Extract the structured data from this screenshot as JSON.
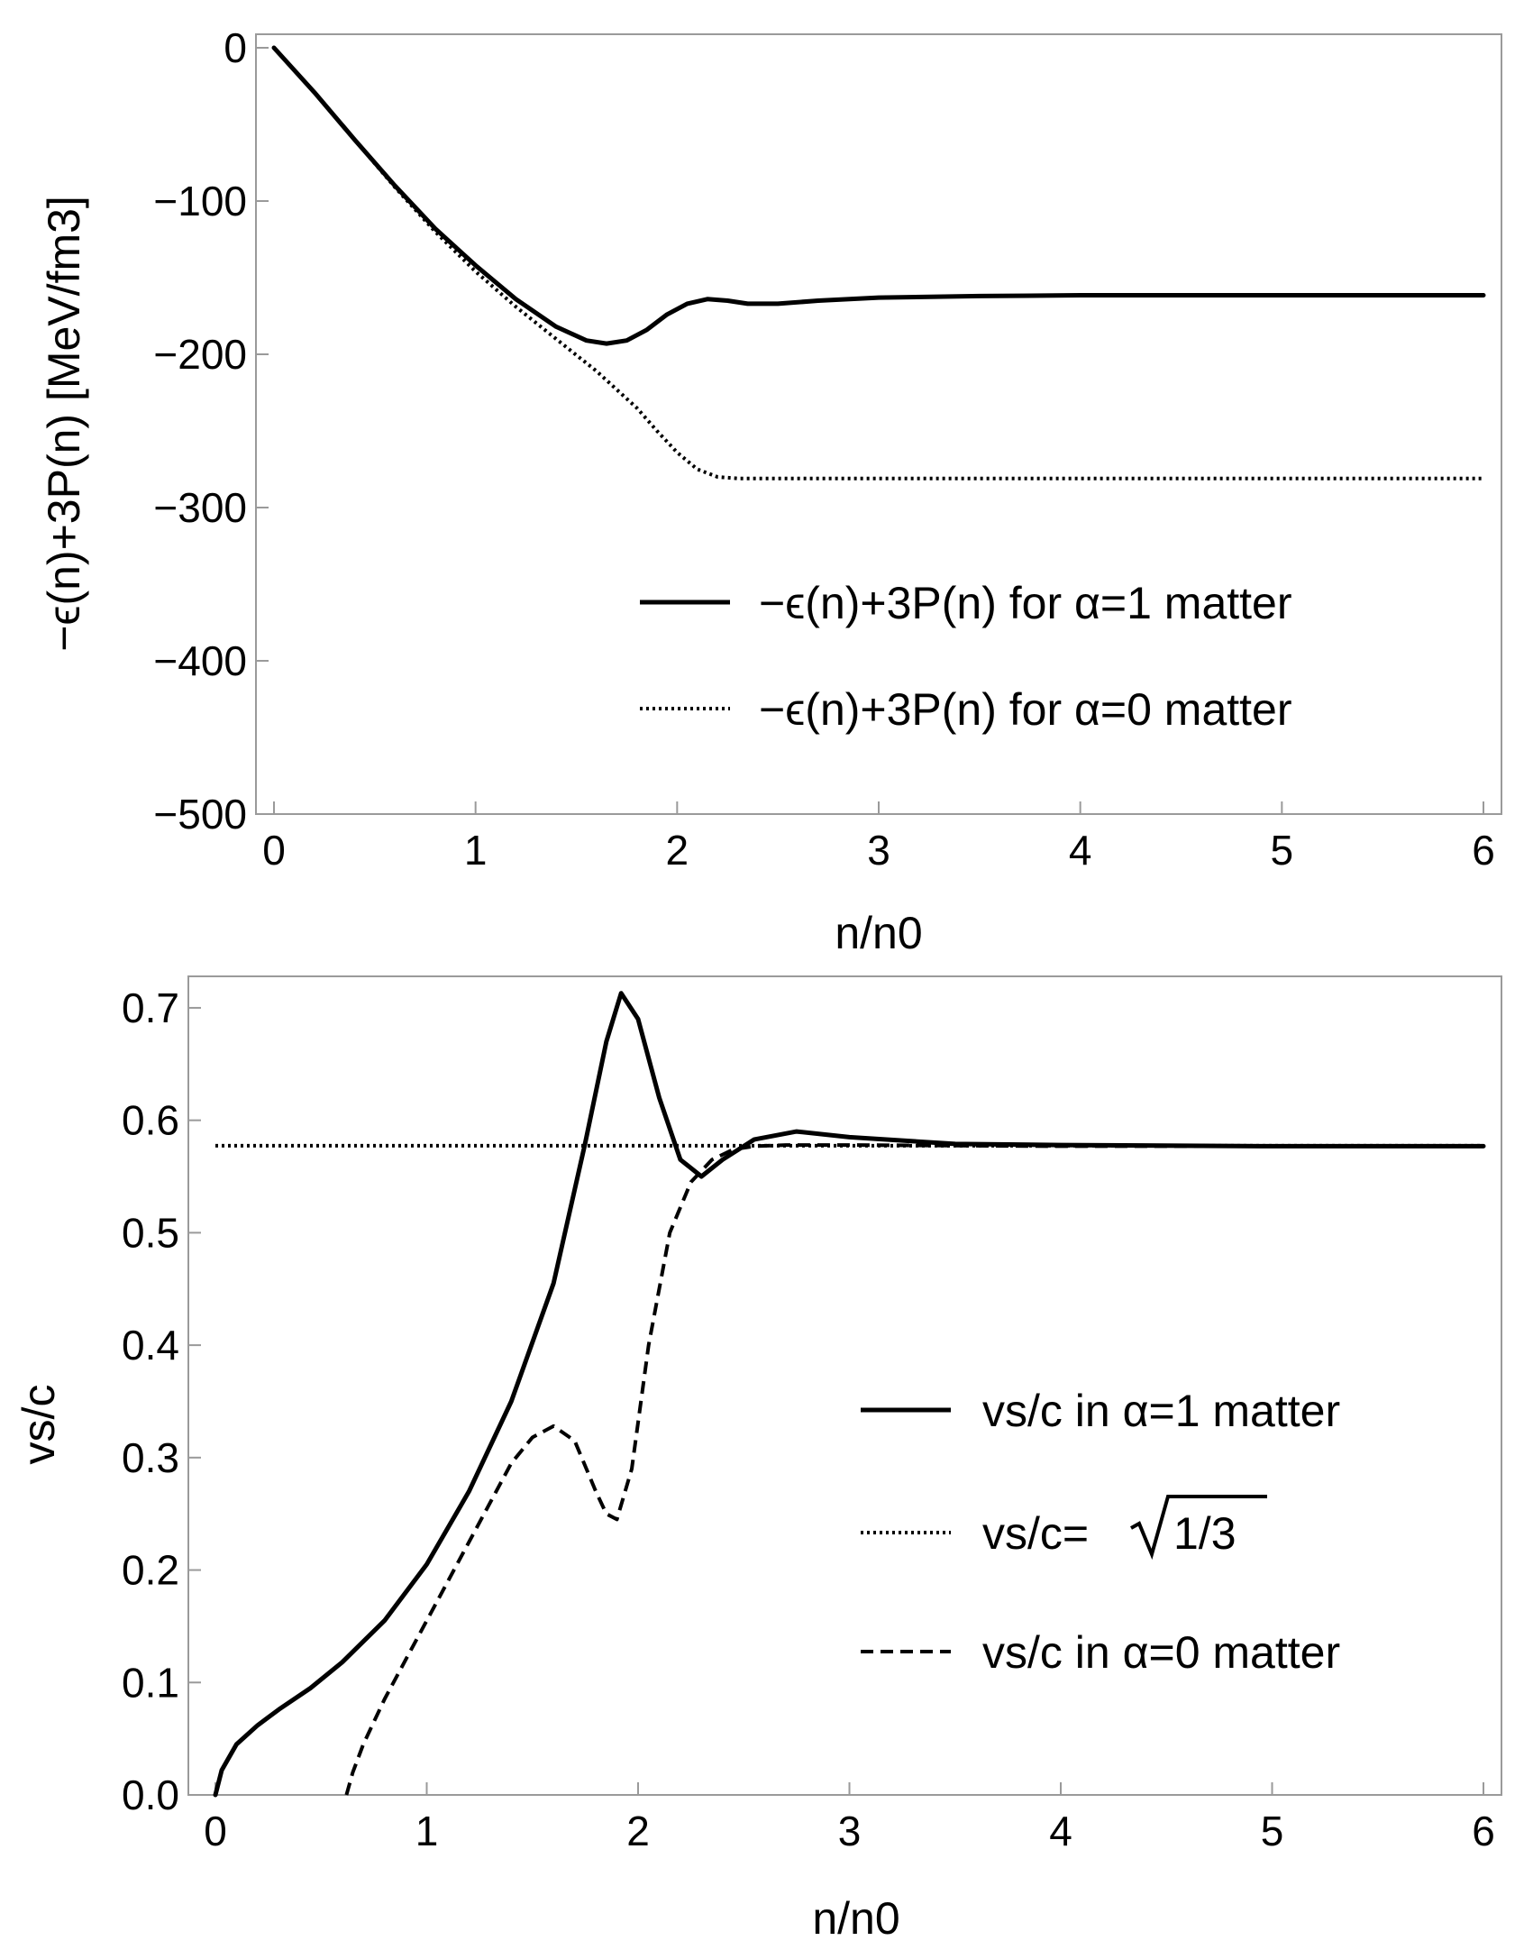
{
  "chart_data": [
    {
      "type": "line",
      "xlabel": "n/n0",
      "ylabel": "−ϵ(n)+3P(n) [MeV/fm3]",
      "xlim": [
        0,
        6
      ],
      "ylim": [
        -500,
        0
      ],
      "xticks": [
        0,
        1,
        2,
        3,
        4,
        5,
        6
      ],
      "yticks": [
        0,
        -100,
        -200,
        -300,
        -400,
        -500
      ],
      "xtick_labels": [
        "0",
        "1",
        "2",
        "3",
        "4",
        "5",
        "6"
      ],
      "ytick_labels": [
        "0",
        "−100",
        "−200",
        "−300",
        "−400",
        "−500"
      ],
      "legend_position": "lower-right",
      "series": [
        {
          "name": "−ϵ(n)+3P(n) for α=1 matter",
          "style": "solid",
          "x": [
            0,
            0.2,
            0.4,
            0.6,
            0.8,
            1.0,
            1.2,
            1.4,
            1.55,
            1.65,
            1.75,
            1.85,
            1.95,
            2.05,
            2.15,
            2.25,
            2.35,
            2.5,
            2.7,
            3.0,
            3.5,
            4.0,
            5.0,
            6.0
          ],
          "y": [
            0,
            -29,
            -60,
            -90,
            -118,
            -142,
            -164,
            -182,
            -191,
            -193,
            -191,
            -184,
            -174,
            -167,
            -164,
            -165,
            -167,
            -167,
            -165,
            -163,
            -162,
            -161.5,
            -161.5,
            -161.5
          ]
        },
        {
          "name": "−ϵ(n)+3P(n) for α=0 matter",
          "style": "dotted",
          "x": [
            0,
            0.2,
            0.4,
            0.6,
            0.8,
            1.0,
            1.2,
            1.4,
            1.6,
            1.8,
            1.9,
            2.0,
            2.1,
            2.2,
            2.3,
            2.5,
            3.0,
            4.0,
            5.0,
            6.0
          ],
          "y": [
            0,
            -29,
            -60,
            -91,
            -120,
            -146,
            -169,
            -190,
            -211,
            -235,
            -250,
            -264,
            -275,
            -280,
            -281,
            -281,
            -281,
            -281,
            -281,
            -281
          ]
        }
      ]
    },
    {
      "type": "line",
      "xlabel": "n/n0",
      "ylabel": "vs/c",
      "xlim": [
        0,
        6
      ],
      "ylim": [
        0,
        0.72
      ],
      "xticks": [
        0,
        1,
        2,
        3,
        4,
        5,
        6
      ],
      "yticks": [
        0.0,
        0.1,
        0.2,
        0.3,
        0.4,
        0.5,
        0.6,
        0.7
      ],
      "xtick_labels": [
        "0",
        "1",
        "2",
        "3",
        "4",
        "5",
        "6"
      ],
      "ytick_labels": [
        "0.0",
        "0.1",
        "0.2",
        "0.3",
        "0.4",
        "0.5",
        "0.6",
        "0.7"
      ],
      "legend_position": "right",
      "series": [
        {
          "name": "vs/c in α=1 matter",
          "style": "solid",
          "x": [
            0,
            0.03,
            0.1,
            0.2,
            0.3,
            0.45,
            0.6,
            0.8,
            1.0,
            1.2,
            1.4,
            1.6,
            1.75,
            1.85,
            1.92,
            2.0,
            2.1,
            2.2,
            2.3,
            2.4,
            2.55,
            2.75,
            3.0,
            3.5,
            4.0,
            5.0,
            6.0
          ],
          "y": [
            0,
            0.022,
            0.045,
            0.062,
            0.076,
            0.095,
            0.118,
            0.155,
            0.205,
            0.27,
            0.35,
            0.455,
            0.58,
            0.67,
            0.713,
            0.69,
            0.62,
            0.565,
            0.55,
            0.565,
            0.583,
            0.59,
            0.585,
            0.579,
            0.578,
            0.577,
            0.577
          ]
        },
        {
          "name": "vs/c=",
          "style": "dotted",
          "x": [
            0,
            6
          ],
          "y": [
            0.57735,
            0.57735
          ]
        },
        {
          "name": "vs/c in α=0 matter",
          "style": "dashed",
          "x": [
            0.62,
            0.65,
            0.7,
            0.8,
            0.9,
            1.0,
            1.1,
            1.2,
            1.3,
            1.4,
            1.5,
            1.6,
            1.7,
            1.8,
            1.85,
            1.9,
            1.97,
            2.05,
            2.15,
            2.25,
            2.35,
            2.45,
            2.55,
            2.7,
            3.0,
            4.0,
            6.0
          ],
          "y": [
            0,
            0.02,
            0.045,
            0.085,
            0.12,
            0.155,
            0.19,
            0.225,
            0.26,
            0.295,
            0.318,
            0.328,
            0.315,
            0.27,
            0.25,
            0.245,
            0.29,
            0.4,
            0.5,
            0.545,
            0.565,
            0.574,
            0.577,
            0.578,
            0.578,
            0.577,
            0.577
          ]
        }
      ],
      "legend_sqrt": "1/3"
    }
  ]
}
